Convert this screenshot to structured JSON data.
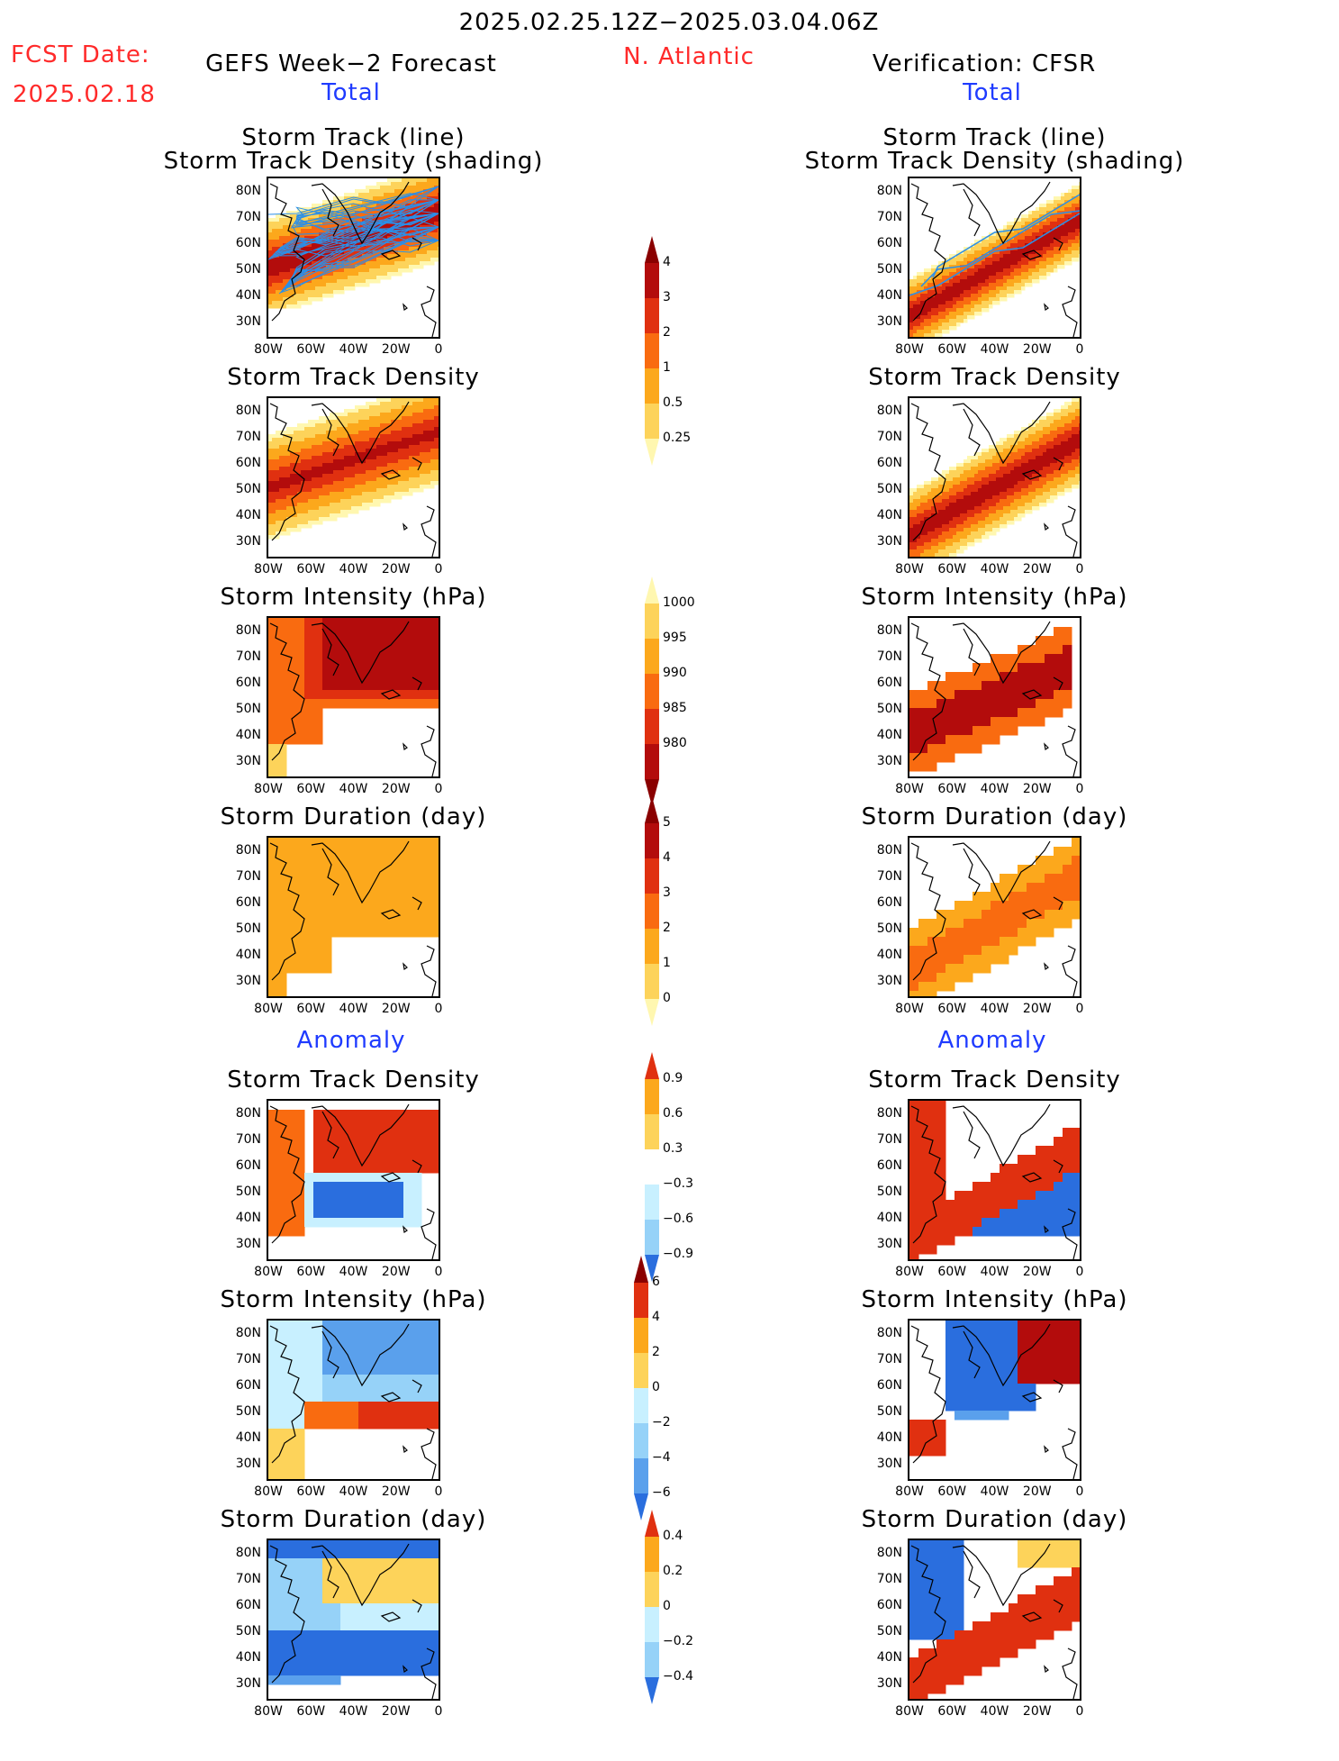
{
  "header": {
    "date_range": "2025.02.25.12Z−2025.03.04.06Z",
    "fcst_label": "FCST Date:",
    "fcst_date": "2025.02.18",
    "model_title": "GEFS Week−2 Forecast",
    "region": "N. Atlantic",
    "verification_title": "Verification: CFSR",
    "total_left": "Total",
    "total_right": "Total",
    "anomaly_left": "Anomaly",
    "anomaly_right": "Anomaly"
  },
  "panel_titles": {
    "track_line": "Storm Track (line)",
    "track_shading": "Storm Track Density (shading)",
    "density": "Storm Track Density",
    "intensity": "Storm Intensity (hPa)",
    "duration": "Storm Duration (day)"
  },
  "axes": {
    "lat_labels": [
      "80N",
      "70N",
      "60N",
      "50N",
      "40N",
      "30N"
    ],
    "lon_labels": [
      "80W",
      "60W",
      "40W",
      "20W",
      "0"
    ]
  },
  "colorbars": {
    "density_total": [
      "4",
      "3",
      "2",
      "1",
      "0.5",
      "0.25"
    ],
    "intensity_total": [
      "1000",
      "995",
      "990",
      "985",
      "980"
    ],
    "duration_total": [
      "5",
      "4",
      "3",
      "2",
      "1",
      "0"
    ],
    "density_anom": [
      "0.9",
      "0.6",
      "0.3",
      "−0.3",
      "−0.6",
      "−0.9"
    ],
    "intensity_anom": [
      "6",
      "4",
      "2",
      "0",
      "−2",
      "−4",
      "−6"
    ],
    "duration_anom": [
      "0.4",
      "0.2",
      "0",
      "−0.2",
      "−0.4"
    ]
  },
  "colors": {
    "warm": [
      "#fff7b0",
      "#fdd35a",
      "#fca81c",
      "#f96b10",
      "#e03010",
      "#b30c0c",
      "#8a0000"
    ],
    "cool": [
      "#c8f0ff",
      "#96d2f8",
      "#5aa0ec",
      "#2a6ede",
      "#1450c8"
    ],
    "title_red": "#ff2a2a",
    "title_blue": "#1f3bff",
    "track_line": "#2b8fe8"
  }
}
